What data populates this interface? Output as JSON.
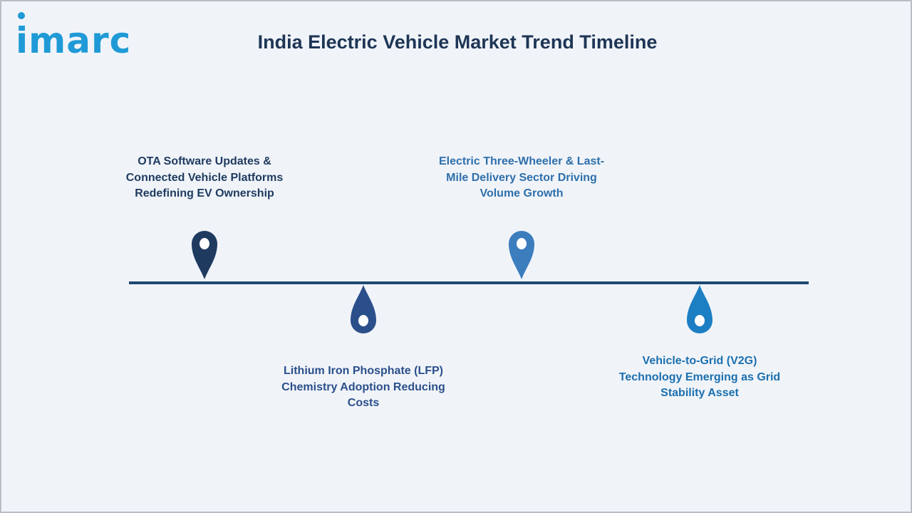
{
  "brand": {
    "logo_text": "imarc",
    "logo_color": "#1f9ad6"
  },
  "title": "India Electric Vehicle Market Trend Timeline",
  "colors": {
    "background": "#f0f4f9",
    "timeline": "#1f4a73",
    "title": "#1e3555"
  },
  "milestones": [
    {
      "text": "OTA Software Updates & Connected Vehicle Platforms Redefining EV Ownership",
      "lines": [
        "OTA Software Updates &",
        "Connected Vehicle Platforms",
        "Redefining EV Ownership"
      ],
      "side": "above",
      "pin_color": "#1e3a5f",
      "text_color": "#1e3a5f"
    },
    {
      "text": "Lithium Iron Phosphate (LFP) Chemistry Adoption Reducing Costs",
      "lines": [
        "Lithium Iron Phosphate (LFP)",
        "Chemistry Adoption Reducing",
        "Costs"
      ],
      "side": "below",
      "pin_color": "#2b4f8a",
      "text_color": "#2b4f8a"
    },
    {
      "text": "Electric Three-Wheeler & Last-Mile Delivery Sector Driving Volume Growth",
      "lines": [
        "Electric Three-Wheeler & Last-",
        "Mile Delivery Sector Driving",
        "Volume Growth"
      ],
      "side": "above",
      "pin_color": "#3c7dbe",
      "text_color": "#2f6fab"
    },
    {
      "text": "Vehicle-to-Grid (V2G) Technology Emerging as Grid Stability Asset",
      "lines": [
        "Vehicle-to-Grid (V2G)",
        "Technology Emerging as Grid",
        "Stability Asset"
      ],
      "side": "below",
      "pin_color": "#1c7fc4",
      "text_color": "#1c6fae"
    }
  ]
}
